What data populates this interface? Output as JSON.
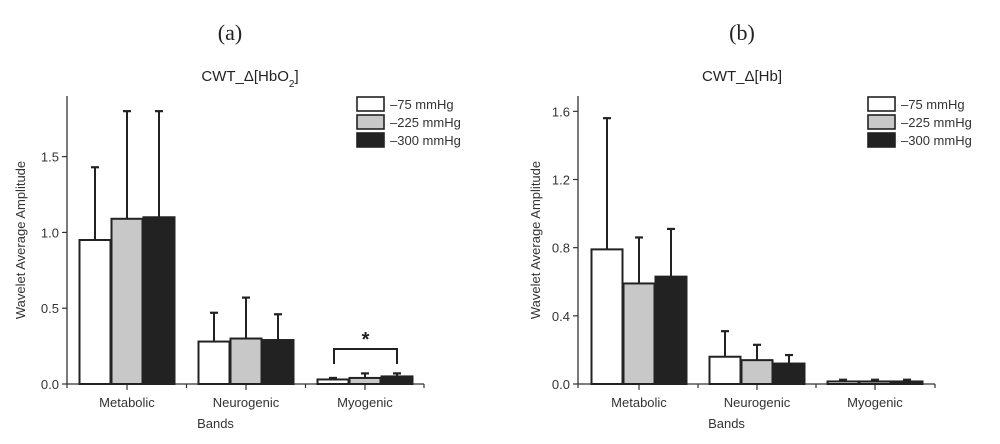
{
  "chart_data": [
    {
      "type": "bar",
      "panel": "(a)",
      "title": "CWT_Δ[HbO2]",
      "title_main": "CWT_Δ[HbO",
      "title_sub": "2",
      "title_end": "]",
      "xlabel": "Bands",
      "ylabel": "Wavelet Average Amplitude",
      "ylim": [
        0,
        1.9
      ],
      "yticks": [
        0.0,
        0.5,
        1.0,
        1.5
      ],
      "ytick_labels": [
        "0.0",
        "0.5",
        "1.0",
        "1.5"
      ],
      "categories": [
        "Metabolic",
        "Neurogenic",
        "Myogenic"
      ],
      "series": [
        {
          "name": "–75 mmHg",
          "color": "#ffffff",
          "values": [
            0.95,
            0.28,
            0.03
          ],
          "error_upper": [
            1.43,
            0.47,
            0.04
          ]
        },
        {
          "name": "–225 mmHg",
          "color": "#c8c8c8",
          "values": [
            1.09,
            0.3,
            0.04
          ],
          "error_upper": [
            1.8,
            0.57,
            0.07
          ]
        },
        {
          "name": "–300 mmHg",
          "color": "#222222",
          "values": [
            1.1,
            0.29,
            0.05
          ],
          "error_upper": [
            1.8,
            0.46,
            0.07
          ]
        }
      ],
      "annotations": [
        {
          "text": "*",
          "category": "Myogenic",
          "type": "significance-bracket"
        }
      ],
      "legend": "top-right",
      "grid": false
    },
    {
      "type": "bar",
      "panel": "(b)",
      "title": "CWT_Δ[Hb]",
      "title_main": "CWT_Δ[Hb]",
      "title_sub": "",
      "title_end": "",
      "xlabel": "Bands",
      "ylabel": "Wavelet Average Amplitude",
      "ylim": [
        0,
        1.69
      ],
      "yticks": [
        0.0,
        0.4,
        0.8,
        1.2,
        1.6
      ],
      "ytick_labels": [
        "0.0",
        "0.4",
        "0.8",
        "1.2",
        "1.6"
      ],
      "categories": [
        "Metabolic",
        "Neurogenic",
        "Myogenic"
      ],
      "series": [
        {
          "name": "–75 mmHg",
          "color": "#ffffff",
          "values": [
            0.79,
            0.16,
            0.015
          ],
          "error_upper": [
            1.56,
            0.31,
            0.025
          ]
        },
        {
          "name": "–225 mmHg",
          "color": "#c8c8c8",
          "values": [
            0.59,
            0.14,
            0.015
          ],
          "error_upper": [
            0.86,
            0.23,
            0.025
          ]
        },
        {
          "name": "–300 mmHg",
          "color": "#222222",
          "values": [
            0.63,
            0.12,
            0.015
          ],
          "error_upper": [
            0.91,
            0.17,
            0.025
          ]
        }
      ],
      "annotations": [],
      "legend": "top-right",
      "grid": false
    }
  ]
}
